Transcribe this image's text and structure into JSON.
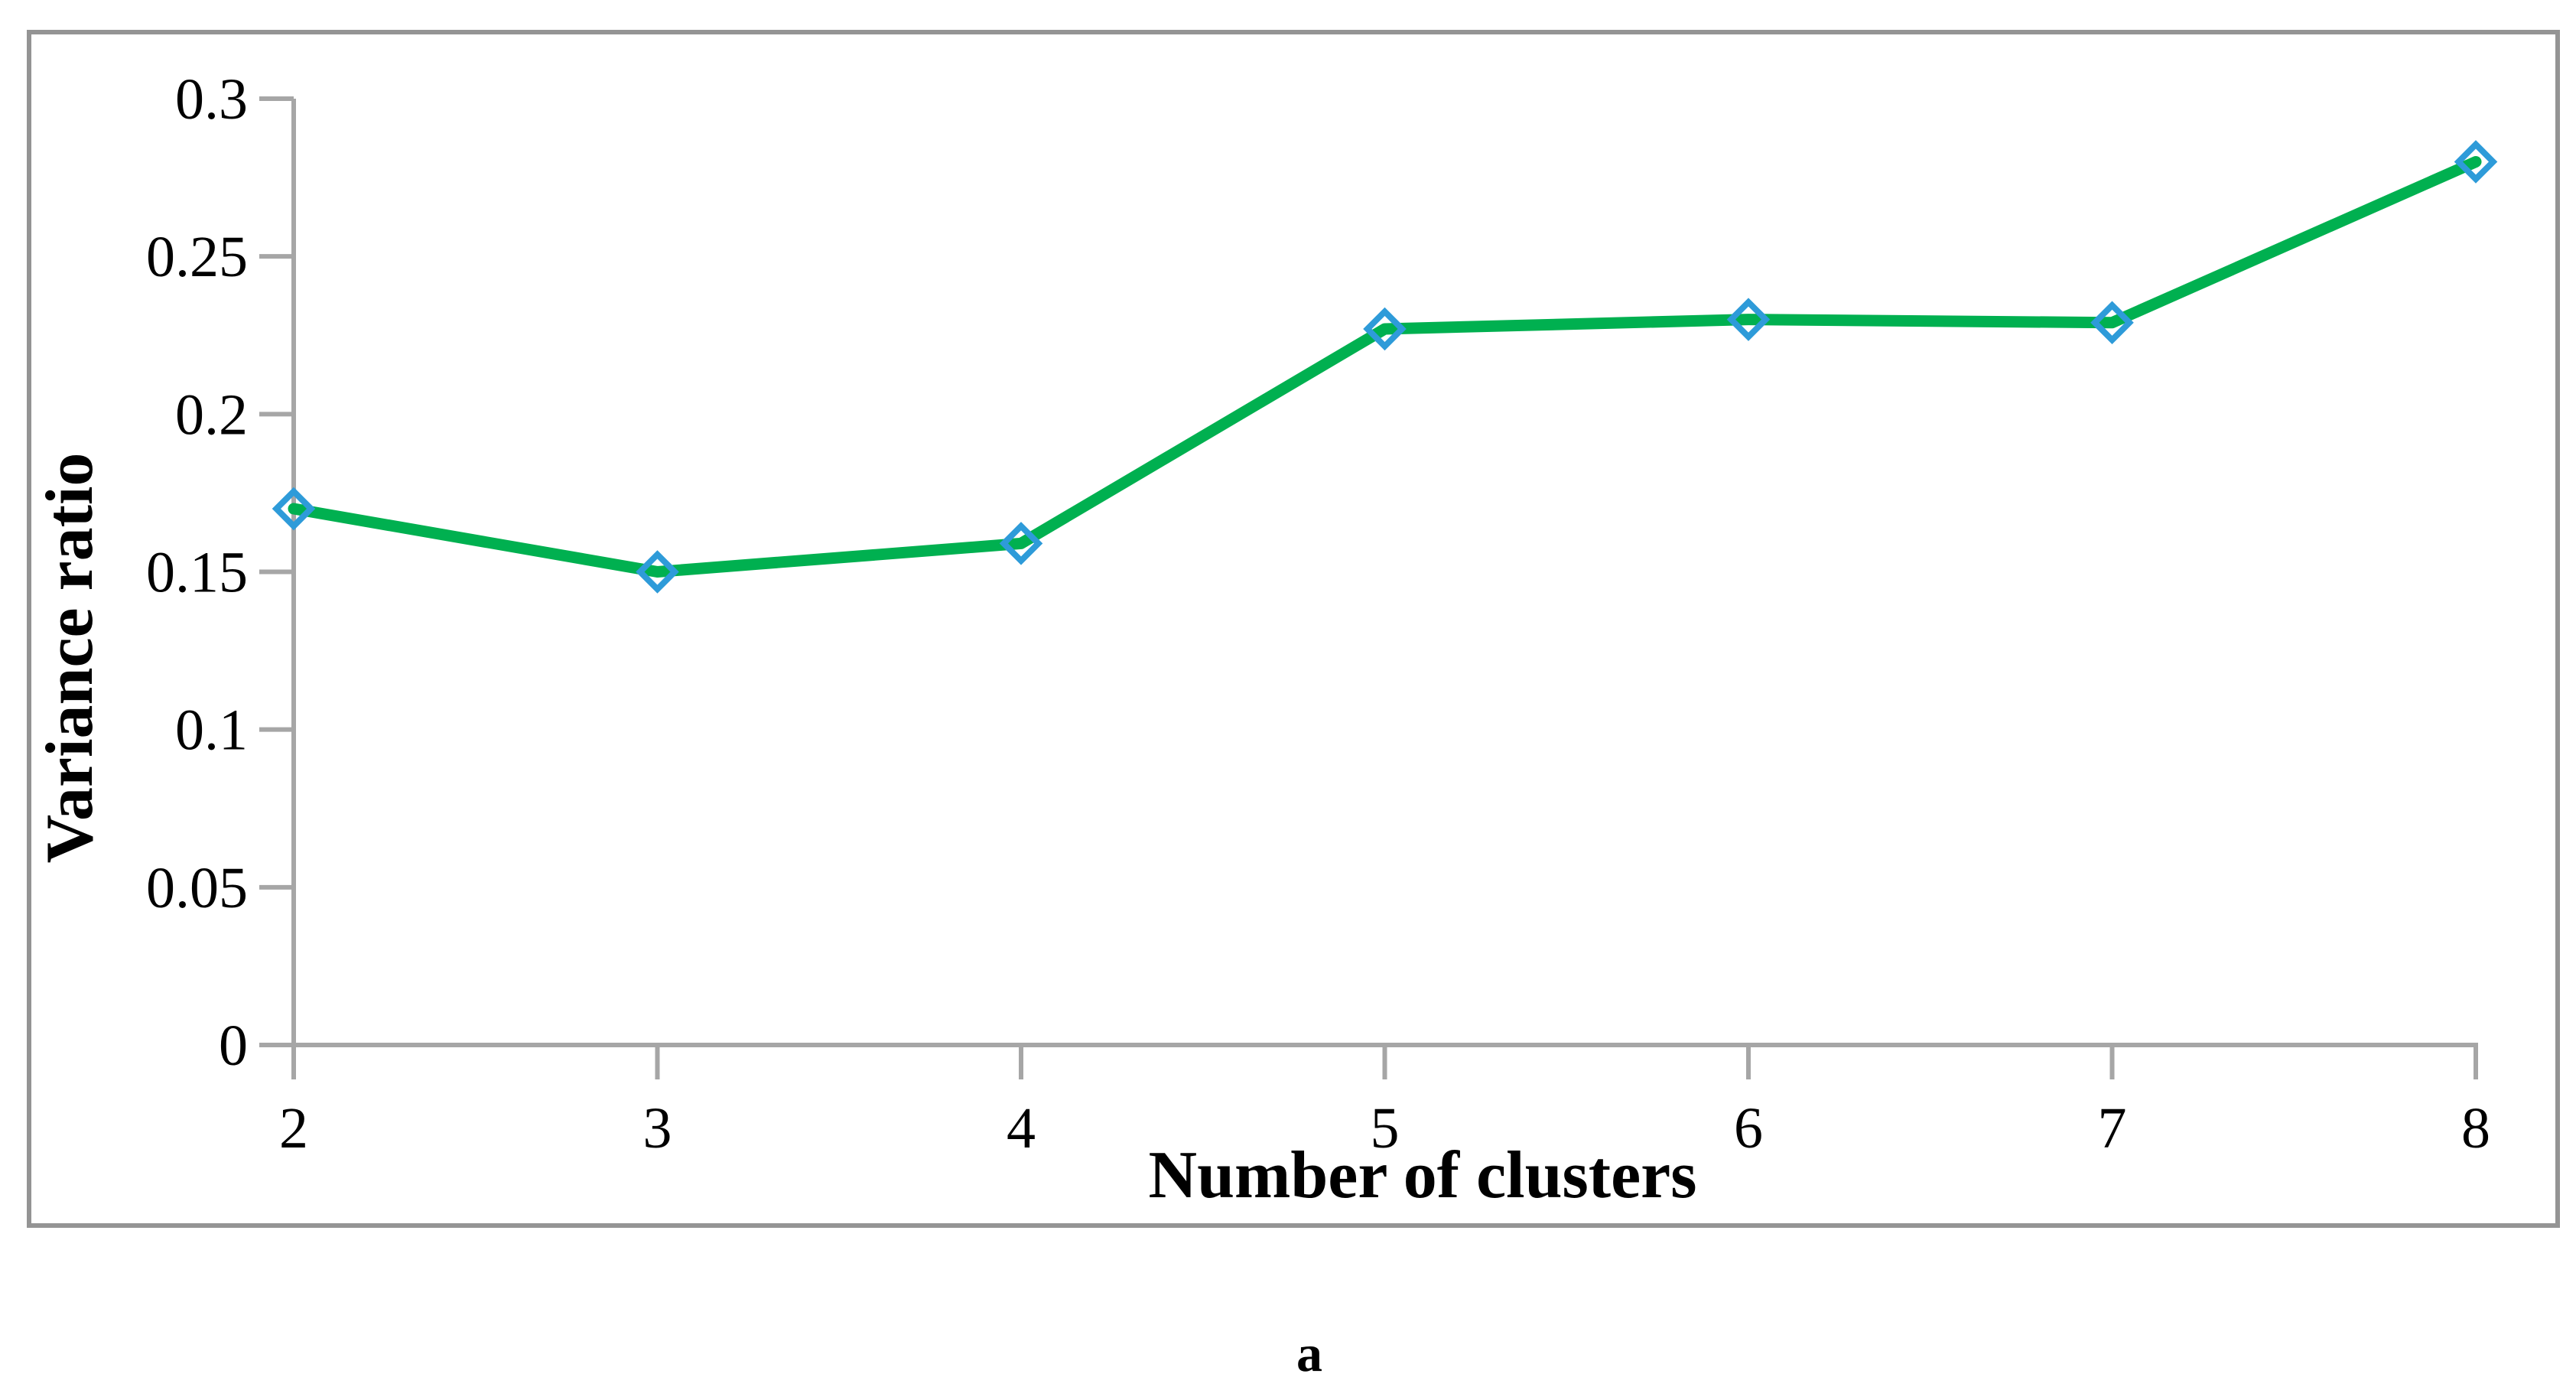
{
  "figure": {
    "caption": "a"
  },
  "colors": {
    "line_green": "#00B050",
    "marker_blue": "#2E9BD9",
    "axis_gray": "#A6A6A6",
    "border_gray": "#949494",
    "text_black": "#000000"
  },
  "chart_data": {
    "type": "line",
    "title": "",
    "xlabel": "Number of clusters",
    "ylabel": "Variance ratio",
    "x": [
      2,
      3,
      4,
      5,
      6,
      7,
      8
    ],
    "xtick_labels": [
      "2",
      "3",
      "4",
      "5",
      "6",
      "7",
      "8"
    ],
    "series": [
      {
        "name": "Variance ratio",
        "values": [
          0.17,
          0.15,
          0.159,
          0.227,
          0.23,
          0.229,
          0.28
        ]
      }
    ],
    "ylim": [
      0,
      0.3
    ],
    "yticks": [
      0,
      0.05,
      0.1,
      0.15,
      0.2,
      0.25,
      0.3
    ],
    "ytick_labels": [
      "0",
      "0.05",
      "0.1",
      "0.15",
      "0.2",
      "0.25",
      "0.3"
    ],
    "grid": false,
    "legend": "none",
    "marker": "diamond-outline",
    "marker_fill": "none"
  }
}
